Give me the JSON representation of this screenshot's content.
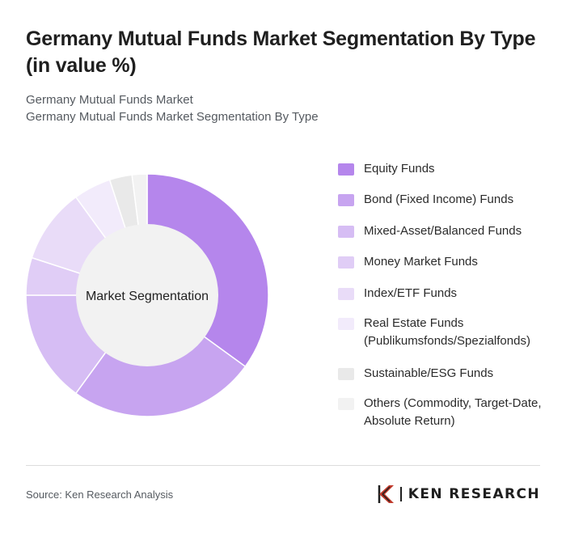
{
  "header": {
    "title": "Germany Mutual Funds Market Segmentation By Type (in value %)",
    "subtitle_line1": "Germany Mutual Funds Market",
    "subtitle_line2": "Germany Mutual Funds Market Segmentation By Type"
  },
  "chart_data": {
    "type": "pie",
    "variant": "donut",
    "center_label": "Market Segmentation",
    "legend_position": "right",
    "categories": [
      "Equity Funds",
      "Bond (Fixed Income) Funds",
      "Mixed-Asset/Balanced Funds",
      "Money Market Funds",
      "Index/ETF Funds",
      "Real Estate Funds (Publikumsfonds/Spezialfonds)",
      "Sustainable/ESG Funds",
      "Others (Commodity, Target-Date, Absolute Return)"
    ],
    "values": [
      35,
      25,
      15,
      5,
      10,
      5,
      3,
      2
    ],
    "colors": [
      "#b586ec",
      "#c7a4f0",
      "#d6bdf4",
      "#e0cdf6",
      "#e9dcf8",
      "#f2ebfb",
      "#e9e9e9",
      "#f2f2f2"
    ]
  },
  "footer": {
    "source": "Source: Ken Research Analysis",
    "brand": "KEN RESEARCH"
  }
}
